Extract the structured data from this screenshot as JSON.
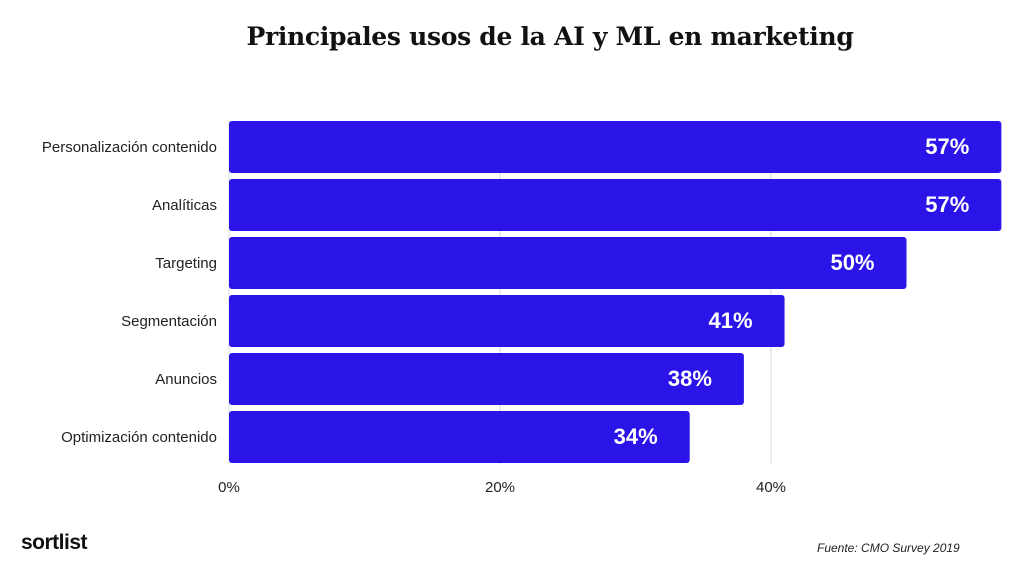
{
  "chart_data": {
    "type": "bar",
    "orientation": "horizontal",
    "title": "Principales usos de la AI y ML en marketing",
    "categories": [
      "Personalización contenido",
      "Analíticas",
      "Targeting",
      "Segmentación",
      "Anuncios",
      "Optimización contenido"
    ],
    "values": [
      57,
      57,
      50,
      41,
      38,
      34
    ],
    "data_labels": [
      "57%",
      "57%",
      "50%",
      "41%",
      "38%",
      "34%"
    ],
    "x_ticks": [
      {
        "value": 0,
        "label": "0%"
      },
      {
        "value": 20,
        "label": "20%"
      },
      {
        "value": 40,
        "label": "40%"
      }
    ],
    "xlim": [
      0,
      60
    ],
    "grid": true,
    "bar_color": "#2b14e8",
    "label_color": "#ffffff"
  },
  "footer": {
    "logo": "sortlist",
    "source": "Fuente: CMO Survey 2019"
  }
}
